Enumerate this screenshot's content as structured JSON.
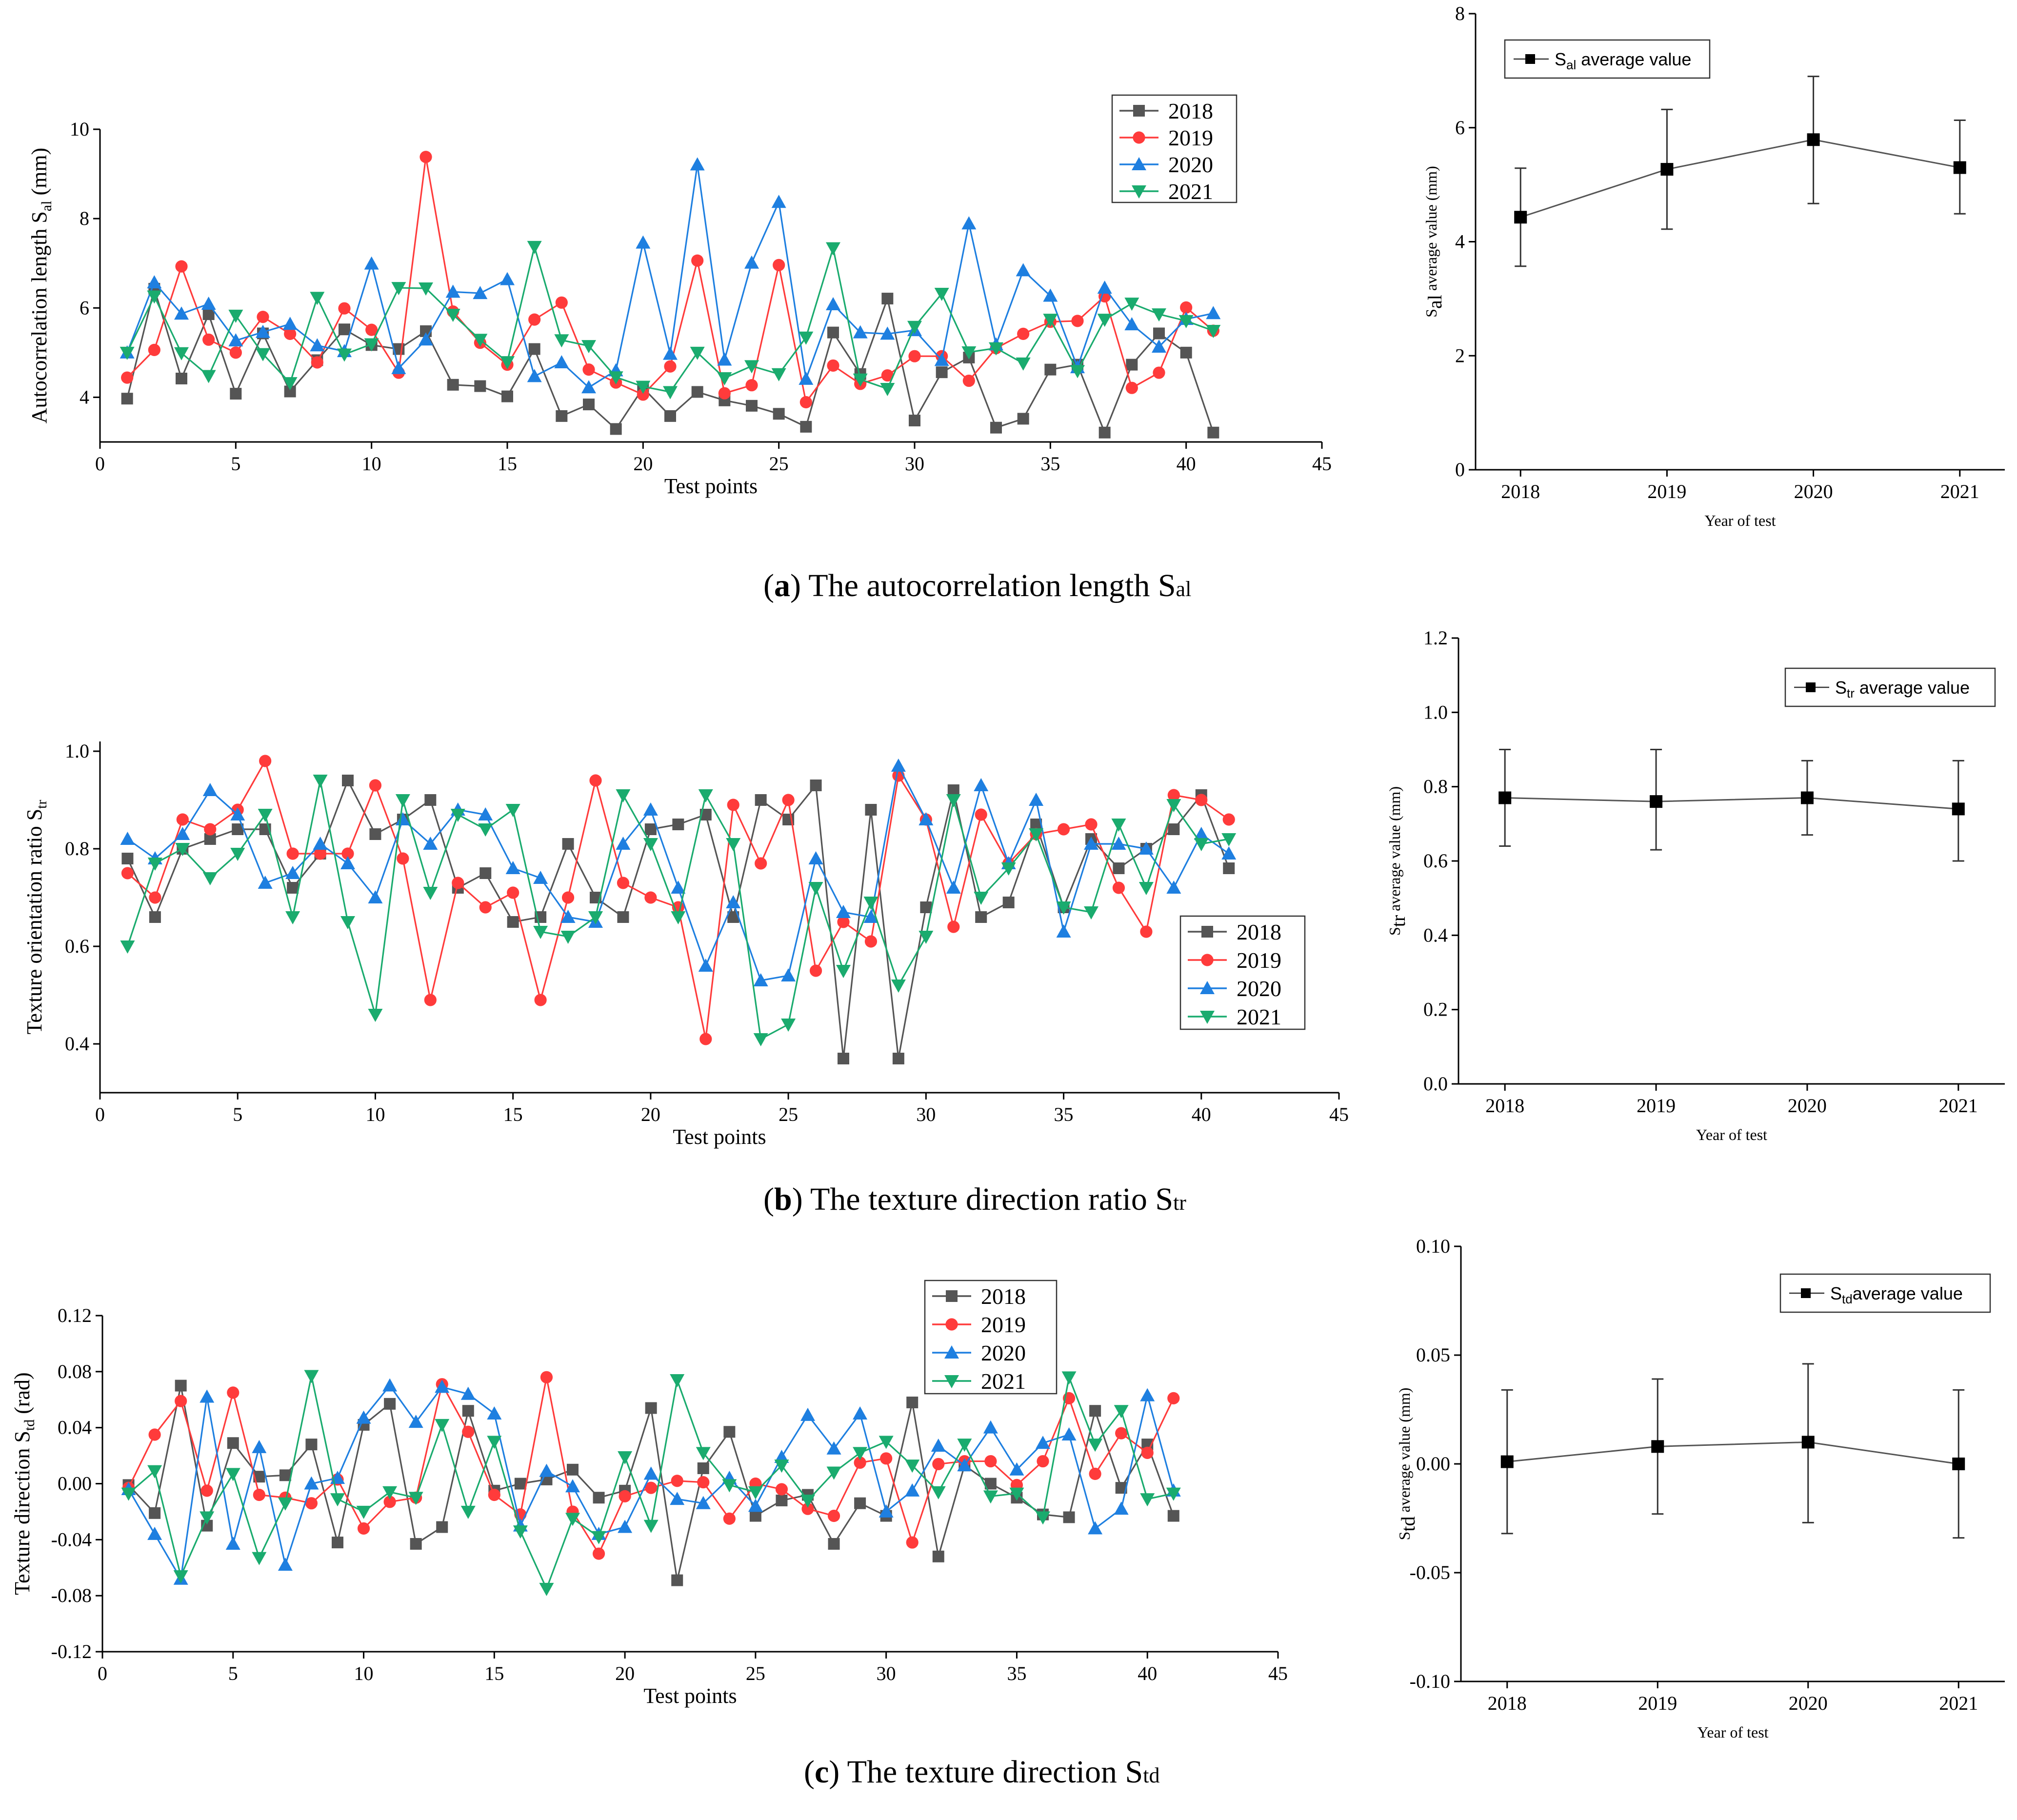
{
  "chart_data": [
    {
      "id": "a_left",
      "type": "line",
      "ylabel_main": "Autocorrelation length  S",
      "ylabel_sub": "al",
      "ylabel_unit": " (mm)",
      "xlabel": "Test points",
      "xlim": [
        0,
        45
      ],
      "ylim": [
        3,
        10
      ],
      "xticks": [
        0,
        5,
        10,
        15,
        20,
        25,
        30,
        35,
        40,
        45
      ],
      "yticks": [
        4,
        6,
        8,
        10
      ],
      "legend_position": "top-right",
      "x": [
        1,
        2,
        3,
        4,
        5,
        6,
        7,
        8,
        9,
        10,
        11,
        12,
        13,
        14,
        15,
        16,
        17,
        18,
        19,
        20,
        21,
        22,
        23,
        24,
        25,
        26,
        27,
        28,
        29,
        30,
        31,
        32,
        33,
        34,
        35,
        36,
        37,
        38,
        39,
        40,
        41
      ],
      "series": [
        {
          "name": "2018",
          "color": "#555555",
          "marker": "square",
          "values": [
            3.97,
            6.43,
            4.42,
            5.86,
            4.08,
            5.43,
            4.13,
            4.83,
            5.52,
            5.17,
            5.08,
            5.48,
            4.28,
            4.25,
            4.02,
            5.08,
            3.58,
            3.84,
            3.29,
            4.21,
            3.58,
            4.12,
            3.93,
            3.81,
            3.63,
            3.34,
            5.45,
            4.52,
            6.21,
            3.48,
            4.56,
            4.89,
            3.32,
            3.52,
            4.62,
            4.73,
            3.21,
            4.73,
            5.43,
            5.0,
            3.21
          ]
        },
        {
          "name": "2019",
          "color": "#ff3b3b",
          "marker": "circle",
          "values": [
            4.44,
            5.06,
            6.93,
            5.29,
            5.0,
            5.8,
            5.42,
            4.78,
            5.99,
            5.51,
            4.55,
            9.38,
            5.92,
            5.22,
            4.73,
            5.74,
            6.12,
            4.62,
            4.33,
            4.06,
            4.69,
            7.06,
            4.09,
            4.27,
            6.96,
            3.89,
            4.71,
            4.3,
            4.49,
            4.92,
            4.92,
            4.37,
            5.1,
            5.42,
            5.69,
            5.71,
            6.26,
            4.21,
            4.55,
            6.01,
            5.49
          ]
        },
        {
          "name": "2020",
          "color": "#1e7fe0",
          "marker": "triangle-up",
          "values": [
            5.0,
            6.57,
            5.87,
            6.09,
            5.27,
            5.46,
            5.64,
            5.16,
            5.03,
            6.99,
            4.65,
            5.29,
            6.36,
            6.33,
            6.64,
            4.47,
            4.78,
            4.22,
            4.6,
            7.46,
            4.97,
            9.21,
            4.84,
            7.01,
            8.37,
            4.41,
            6.08,
            5.45,
            5.42,
            5.5,
            4.83,
            7.89,
            5.18,
            6.84,
            6.27,
            4.67,
            6.45,
            5.63,
            5.13,
            5.75,
            5.88
          ]
        },
        {
          "name": "2021",
          "color": "#1aab6e",
          "marker": "triangle-down",
          "values": [
            5.0,
            6.26,
            4.99,
            4.48,
            5.83,
            4.97,
            4.32,
            6.23,
            4.96,
            5.19,
            6.45,
            6.44,
            5.85,
            5.29,
            4.79,
            7.37,
            5.28,
            5.15,
            4.45,
            4.24,
            4.12,
            5.0,
            4.43,
            4.7,
            4.52,
            5.34,
            7.34,
            4.4,
            4.19,
            5.58,
            6.32,
            5.01,
            5.1,
            4.76,
            5.74,
            4.59,
            5.74,
            6.1,
            5.86,
            5.71,
            5.49
          ]
        }
      ]
    },
    {
      "id": "a_right",
      "type": "line",
      "ylabel_main": "S",
      "ylabel_sub": "al",
      "ylabel_unit": " average value  (mm)",
      "xlabel": "Year of test",
      "ylim": [
        0,
        8
      ],
      "yticks": [
        0,
        2,
        4,
        6,
        8
      ],
      "categories": [
        "2018",
        "2019",
        "2020",
        "2021"
      ],
      "legend_position": "top-left",
      "series": [
        {
          "name_main": "S",
          "name_sub": "al",
          "name_rest": "  average value",
          "color": "#555555",
          "marker": "square",
          "values": [
            4.43,
            5.27,
            5.79,
            5.3
          ],
          "err_low": [
            3.57,
            4.22,
            4.67,
            4.49
          ],
          "err_high": [
            5.29,
            6.32,
            6.9,
            6.13
          ]
        }
      ]
    },
    {
      "id": "b_left",
      "type": "line",
      "ylabel_main": "Texture orientation ratio  S",
      "ylabel_sub": "tr",
      "ylabel_unit": "",
      "xlabel": "Test points",
      "xlim": [
        0,
        45
      ],
      "ylim": [
        0.3,
        1.02
      ],
      "xticks": [
        0,
        5,
        10,
        15,
        20,
        25,
        30,
        35,
        40,
        45
      ],
      "yticks": [
        0.4,
        0.6,
        0.8,
        1.0
      ],
      "yticklabels": [
        "0.4",
        "0.6",
        "0.8",
        "1.0"
      ],
      "legend_position": "right",
      "x": [
        1,
        2,
        3,
        4,
        5,
        6,
        7,
        8,
        9,
        10,
        11,
        12,
        13,
        14,
        15,
        16,
        17,
        18,
        19,
        20,
        21,
        22,
        23,
        24,
        25,
        26,
        27,
        28,
        29,
        30,
        31,
        32,
        33,
        34,
        35,
        36,
        37,
        38,
        39,
        40,
        41
      ],
      "series": [
        {
          "name": "2018",
          "color": "#555555",
          "marker": "square",
          "values": [
            0.78,
            0.66,
            0.8,
            0.82,
            0.84,
            0.84,
            0.72,
            0.79,
            0.94,
            0.83,
            0.86,
            0.9,
            0.72,
            0.75,
            0.65,
            0.66,
            0.81,
            0.7,
            0.66,
            0.84,
            0.85,
            0.87,
            0.66,
            0.9,
            0.86,
            0.93,
            0.37,
            0.88,
            0.37,
            0.68,
            0.92,
            0.66,
            0.69,
            0.85,
            0.68,
            0.82,
            0.76,
            0.8,
            0.84,
            0.91,
            0.76
          ]
        },
        {
          "name": "2019",
          "color": "#ff3b3b",
          "marker": "circle",
          "values": [
            0.75,
            0.7,
            0.86,
            0.84,
            0.88,
            0.98,
            0.79,
            0.79,
            0.79,
            0.93,
            0.78,
            0.49,
            0.73,
            0.68,
            0.71,
            0.49,
            0.7,
            0.94,
            0.73,
            0.7,
            0.68,
            0.41,
            0.89,
            0.77,
            0.9,
            0.55,
            0.65,
            0.61,
            0.95,
            0.86,
            0.64,
            0.87,
            0.77,
            0.83,
            0.84,
            0.85,
            0.72,
            0.63,
            0.91,
            0.9,
            0.86
          ]
        },
        {
          "name": "2020",
          "color": "#1e7fe0",
          "marker": "triangle-up",
          "values": [
            0.82,
            0.78,
            0.83,
            0.92,
            0.87,
            0.73,
            0.75,
            0.81,
            0.77,
            0.7,
            0.86,
            0.81,
            0.88,
            0.87,
            0.76,
            0.74,
            0.66,
            0.65,
            0.81,
            0.88,
            0.72,
            0.56,
            0.69,
            0.53,
            0.54,
            0.78,
            0.67,
            0.66,
            0.97,
            0.86,
            0.72,
            0.93,
            0.77,
            0.9,
            0.63,
            0.81,
            0.81,
            0.8,
            0.72,
            0.83,
            0.79
          ]
        },
        {
          "name": "2021",
          "color": "#1aab6e",
          "marker": "triangle-down",
          "values": [
            0.6,
            0.77,
            0.8,
            0.74,
            0.79,
            0.87,
            0.66,
            0.94,
            0.65,
            0.46,
            0.9,
            0.71,
            0.87,
            0.84,
            0.88,
            0.63,
            0.62,
            0.66,
            0.91,
            0.81,
            0.66,
            0.91,
            0.81,
            0.41,
            0.44,
            0.72,
            0.55,
            0.69,
            0.52,
            0.62,
            0.9,
            0.7,
            0.76,
            0.83,
            0.68,
            0.67,
            0.85,
            0.72,
            0.89,
            0.81,
            0.82
          ]
        }
      ]
    },
    {
      "id": "b_right",
      "type": "line",
      "ylabel_main": "S",
      "ylabel_sub": "tr",
      "ylabel_unit": " average value  (mm)",
      "xlabel": "Year of test",
      "ylim": [
        0,
        1.2
      ],
      "yticks": [
        0,
        0.2,
        0.4,
        0.6,
        0.8,
        1.0,
        1.2
      ],
      "yticklabels": [
        "0.0",
        "0.2",
        "0.4",
        "0.6",
        "0.8",
        "1.0",
        "1.2"
      ],
      "categories": [
        "2018",
        "2019",
        "2020",
        "2021"
      ],
      "legend_position": "top-right",
      "series": [
        {
          "name_main": "S",
          "name_sub": "tr",
          "name_rest": "  average value",
          "color": "#555555",
          "marker": "square",
          "values": [
            0.77,
            0.76,
            0.77,
            0.74
          ],
          "err_low": [
            0.64,
            0.63,
            0.67,
            0.6
          ],
          "err_high": [
            0.9,
            0.9,
            0.87,
            0.87
          ]
        }
      ]
    },
    {
      "id": "c_left",
      "type": "line",
      "ylabel_main": "Texture direction  S",
      "ylabel_sub": "td",
      "ylabel_unit": " (rad)",
      "xlabel": "Test points",
      "xlim": [
        0,
        45
      ],
      "ylim": [
        -0.12,
        0.12
      ],
      "xticks": [
        0,
        5,
        10,
        15,
        20,
        25,
        30,
        35,
        40,
        45
      ],
      "yticks": [
        -0.12,
        -0.08,
        -0.04,
        0.0,
        0.04,
        0.08,
        0.12
      ],
      "yticklabels": [
        "-0.12",
        "-0.08",
        "-0.04",
        "0.00",
        "0.04",
        "0.08",
        "0.12"
      ],
      "legend_position": "top",
      "x": [
        1,
        2,
        3,
        4,
        5,
        6,
        7,
        8,
        9,
        10,
        11,
        12,
        13,
        14,
        15,
        16,
        17,
        18,
        19,
        20,
        21,
        22,
        23,
        24,
        25,
        26,
        27,
        28,
        29,
        30,
        31,
        32,
        33,
        34,
        35,
        36,
        37,
        38,
        39,
        40,
        41
      ],
      "series": [
        {
          "name": "2018",
          "color": "#555555",
          "marker": "square",
          "values": [
            -0.001,
            -0.021,
            0.07,
            -0.03,
            0.029,
            0.005,
            0.006,
            0.028,
            -0.042,
            0.042,
            0.057,
            -0.043,
            -0.031,
            0.052,
            -0.005,
            0.0,
            0.003,
            0.01,
            -0.01,
            -0.005,
            0.054,
            -0.069,
            0.011,
            0.037,
            -0.023,
            -0.012,
            -0.008,
            -0.043,
            -0.014,
            -0.023,
            0.058,
            -0.052,
            0.013,
            0.0,
            -0.01,
            -0.022,
            -0.024,
            0.052,
            -0.003,
            0.028,
            -0.023
          ]
        },
        {
          "name": "2019",
          "color": "#ff3b3b",
          "marker": "circle",
          "values": [
            -0.003,
            0.035,
            0.059,
            -0.005,
            0.065,
            -0.008,
            -0.01,
            -0.014,
            0.003,
            -0.032,
            -0.013,
            -0.01,
            0.071,
            0.037,
            -0.008,
            -0.022,
            0.076,
            -0.02,
            -0.05,
            -0.009,
            -0.003,
            0.002,
            0.001,
            -0.025,
            0.0,
            -0.004,
            -0.018,
            -0.023,
            0.015,
            0.018,
            -0.042,
            0.014,
            0.016,
            0.016,
            -0.001,
            0.016,
            0.061,
            0.007,
            0.036,
            0.022,
            0.061
          ]
        },
        {
          "name": "2020",
          "color": "#1e7fe0",
          "marker": "triangle-up",
          "values": [
            -0.004,
            -0.036,
            -0.068,
            0.062,
            -0.043,
            0.026,
            -0.058,
            0.0,
            0.004,
            0.047,
            0.07,
            0.044,
            0.069,
            0.064,
            0.05,
            -0.03,
            0.009,
            -0.002,
            -0.036,
            -0.031,
            0.007,
            -0.011,
            -0.014,
            0.004,
            -0.016,
            0.019,
            0.049,
            0.025,
            0.05,
            -0.02,
            -0.005,
            0.027,
            0.013,
            0.04,
            0.01,
            0.029,
            0.035,
            -0.032,
            -0.018,
            0.063,
            -0.005
          ]
        },
        {
          "name": "2021",
          "color": "#1aab6e",
          "marker": "triangle-down",
          "values": [
            -0.007,
            0.009,
            -0.066,
            -0.024,
            0.007,
            -0.053,
            -0.014,
            0.077,
            -0.011,
            -0.02,
            -0.006,
            -0.01,
            0.042,
            -0.02,
            0.03,
            -0.034,
            -0.075,
            -0.025,
            -0.038,
            0.019,
            -0.03,
            0.074,
            0.022,
            -0.001,
            -0.006,
            0.013,
            -0.012,
            0.008,
            0.022,
            0.03,
            0.013,
            -0.006,
            0.028,
            -0.009,
            -0.007,
            -0.024,
            0.076,
            0.028,
            0.052,
            -0.011,
            -0.007
          ]
        }
      ]
    },
    {
      "id": "c_right",
      "type": "line",
      "ylabel_main": "S",
      "ylabel_sub": "td",
      "ylabel_unit": " average value  (mm)",
      "xlabel": "Year of test",
      "ylim": [
        -0.1,
        0.1
      ],
      "yticks": [
        -0.1,
        -0.05,
        0.0,
        0.05,
        0.1
      ],
      "yticklabels": [
        "-0.10",
        "-0.05",
        "0.00",
        "0.05",
        "0.10"
      ],
      "categories": [
        "2018",
        "2019",
        "2020",
        "2021"
      ],
      "legend_position": "top-right",
      "series": [
        {
          "name_main": "S",
          "name_sub": "td",
          "name_rest": "average value",
          "color": "#555555",
          "marker": "square",
          "values": [
            0.001,
            0.008,
            0.01,
            0.0
          ],
          "err_low": [
            -0.032,
            -0.023,
            -0.027,
            -0.034
          ],
          "err_high": [
            0.034,
            0.039,
            0.046,
            0.034
          ]
        }
      ]
    }
  ],
  "captions": [
    {
      "label": "(a)",
      "letter": "a",
      "text": " The autocorrelation length S",
      "sub": "al"
    },
    {
      "label": "(b)",
      "letter": "b",
      "text": " The texture direction ratio S",
      "sub": "tr"
    },
    {
      "label": "(c)",
      "letter": "c",
      "text": " The texture direction S",
      "sub": "td"
    }
  ]
}
